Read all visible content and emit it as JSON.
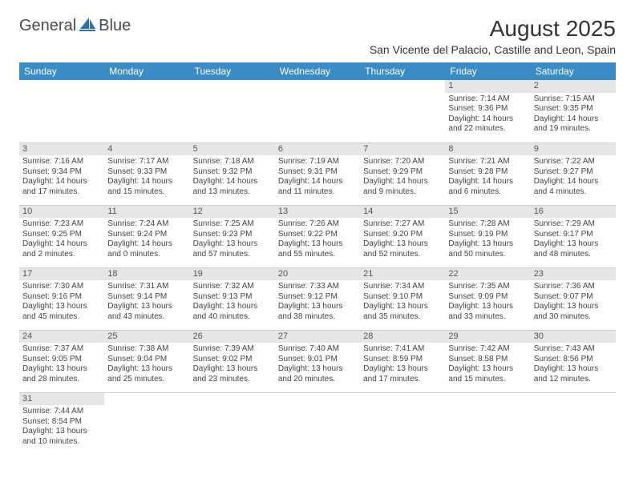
{
  "brand": {
    "name": "GeneralBlue",
    "text1": "General",
    "text2": "Blue"
  },
  "colors": {
    "header_bg": "#3b8bc4",
    "header_text": "#ffffff",
    "day_header_bg": "#e6e6e6",
    "border": "#cfcfcf",
    "logo_blue": "#2e6fa8"
  },
  "title": "August 2025",
  "location": "San Vicente del Palacio, Castille and Leon, Spain",
  "weekdays": [
    "Sunday",
    "Monday",
    "Tuesday",
    "Wednesday",
    "Thursday",
    "Friday",
    "Saturday"
  ],
  "grid": [
    [
      null,
      null,
      null,
      null,
      null,
      {
        "n": "1",
        "sunrise": "Sunrise: 7:14 AM",
        "sunset": "Sunset: 9:36 PM",
        "day1": "Daylight: 14 hours",
        "day2": "and 22 minutes."
      },
      {
        "n": "2",
        "sunrise": "Sunrise: 7:15 AM",
        "sunset": "Sunset: 9:35 PM",
        "day1": "Daylight: 14 hours",
        "day2": "and 19 minutes."
      }
    ],
    [
      {
        "n": "3",
        "sunrise": "Sunrise: 7:16 AM",
        "sunset": "Sunset: 9:34 PM",
        "day1": "Daylight: 14 hours",
        "day2": "and 17 minutes."
      },
      {
        "n": "4",
        "sunrise": "Sunrise: 7:17 AM",
        "sunset": "Sunset: 9:33 PM",
        "day1": "Daylight: 14 hours",
        "day2": "and 15 minutes."
      },
      {
        "n": "5",
        "sunrise": "Sunrise: 7:18 AM",
        "sunset": "Sunset: 9:32 PM",
        "day1": "Daylight: 14 hours",
        "day2": "and 13 minutes."
      },
      {
        "n": "6",
        "sunrise": "Sunrise: 7:19 AM",
        "sunset": "Sunset: 9:31 PM",
        "day1": "Daylight: 14 hours",
        "day2": "and 11 minutes."
      },
      {
        "n": "7",
        "sunrise": "Sunrise: 7:20 AM",
        "sunset": "Sunset: 9:29 PM",
        "day1": "Daylight: 14 hours",
        "day2": "and 9 minutes."
      },
      {
        "n": "8",
        "sunrise": "Sunrise: 7:21 AM",
        "sunset": "Sunset: 9:28 PM",
        "day1": "Daylight: 14 hours",
        "day2": "and 6 minutes."
      },
      {
        "n": "9",
        "sunrise": "Sunrise: 7:22 AM",
        "sunset": "Sunset: 9:27 PM",
        "day1": "Daylight: 14 hours",
        "day2": "and 4 minutes."
      }
    ],
    [
      {
        "n": "10",
        "sunrise": "Sunrise: 7:23 AM",
        "sunset": "Sunset: 9:25 PM",
        "day1": "Daylight: 14 hours",
        "day2": "and 2 minutes."
      },
      {
        "n": "11",
        "sunrise": "Sunrise: 7:24 AM",
        "sunset": "Sunset: 9:24 PM",
        "day1": "Daylight: 14 hours",
        "day2": "and 0 minutes."
      },
      {
        "n": "12",
        "sunrise": "Sunrise: 7:25 AM",
        "sunset": "Sunset: 9:23 PM",
        "day1": "Daylight: 13 hours",
        "day2": "and 57 minutes."
      },
      {
        "n": "13",
        "sunrise": "Sunrise: 7:26 AM",
        "sunset": "Sunset: 9:22 PM",
        "day1": "Daylight: 13 hours",
        "day2": "and 55 minutes."
      },
      {
        "n": "14",
        "sunrise": "Sunrise: 7:27 AM",
        "sunset": "Sunset: 9:20 PM",
        "day1": "Daylight: 13 hours",
        "day2": "and 52 minutes."
      },
      {
        "n": "15",
        "sunrise": "Sunrise: 7:28 AM",
        "sunset": "Sunset: 9:19 PM",
        "day1": "Daylight: 13 hours",
        "day2": "and 50 minutes."
      },
      {
        "n": "16",
        "sunrise": "Sunrise: 7:29 AM",
        "sunset": "Sunset: 9:17 PM",
        "day1": "Daylight: 13 hours",
        "day2": "and 48 minutes."
      }
    ],
    [
      {
        "n": "17",
        "sunrise": "Sunrise: 7:30 AM",
        "sunset": "Sunset: 9:16 PM",
        "day1": "Daylight: 13 hours",
        "day2": "and 45 minutes."
      },
      {
        "n": "18",
        "sunrise": "Sunrise: 7:31 AM",
        "sunset": "Sunset: 9:14 PM",
        "day1": "Daylight: 13 hours",
        "day2": "and 43 minutes."
      },
      {
        "n": "19",
        "sunrise": "Sunrise: 7:32 AM",
        "sunset": "Sunset: 9:13 PM",
        "day1": "Daylight: 13 hours",
        "day2": "and 40 minutes."
      },
      {
        "n": "20",
        "sunrise": "Sunrise: 7:33 AM",
        "sunset": "Sunset: 9:12 PM",
        "day1": "Daylight: 13 hours",
        "day2": "and 38 minutes."
      },
      {
        "n": "21",
        "sunrise": "Sunrise: 7:34 AM",
        "sunset": "Sunset: 9:10 PM",
        "day1": "Daylight: 13 hours",
        "day2": "and 35 minutes."
      },
      {
        "n": "22",
        "sunrise": "Sunrise: 7:35 AM",
        "sunset": "Sunset: 9:09 PM",
        "day1": "Daylight: 13 hours",
        "day2": "and 33 minutes."
      },
      {
        "n": "23",
        "sunrise": "Sunrise: 7:36 AM",
        "sunset": "Sunset: 9:07 PM",
        "day1": "Daylight: 13 hours",
        "day2": "and 30 minutes."
      }
    ],
    [
      {
        "n": "24",
        "sunrise": "Sunrise: 7:37 AM",
        "sunset": "Sunset: 9:05 PM",
        "day1": "Daylight: 13 hours",
        "day2": "and 28 minutes."
      },
      {
        "n": "25",
        "sunrise": "Sunrise: 7:38 AM",
        "sunset": "Sunset: 9:04 PM",
        "day1": "Daylight: 13 hours",
        "day2": "and 25 minutes."
      },
      {
        "n": "26",
        "sunrise": "Sunrise: 7:39 AM",
        "sunset": "Sunset: 9:02 PM",
        "day1": "Daylight: 13 hours",
        "day2": "and 23 minutes."
      },
      {
        "n": "27",
        "sunrise": "Sunrise: 7:40 AM",
        "sunset": "Sunset: 9:01 PM",
        "day1": "Daylight: 13 hours",
        "day2": "and 20 minutes."
      },
      {
        "n": "28",
        "sunrise": "Sunrise: 7:41 AM",
        "sunset": "Sunset: 8:59 PM",
        "day1": "Daylight: 13 hours",
        "day2": "and 17 minutes."
      },
      {
        "n": "29",
        "sunrise": "Sunrise: 7:42 AM",
        "sunset": "Sunset: 8:58 PM",
        "day1": "Daylight: 13 hours",
        "day2": "and 15 minutes."
      },
      {
        "n": "30",
        "sunrise": "Sunrise: 7:43 AM",
        "sunset": "Sunset: 8:56 PM",
        "day1": "Daylight: 13 hours",
        "day2": "and 12 minutes."
      }
    ],
    [
      {
        "n": "31",
        "sunrise": "Sunrise: 7:44 AM",
        "sunset": "Sunset: 8:54 PM",
        "day1": "Daylight: 13 hours",
        "day2": "and 10 minutes."
      },
      null,
      null,
      null,
      null,
      null,
      null
    ]
  ]
}
